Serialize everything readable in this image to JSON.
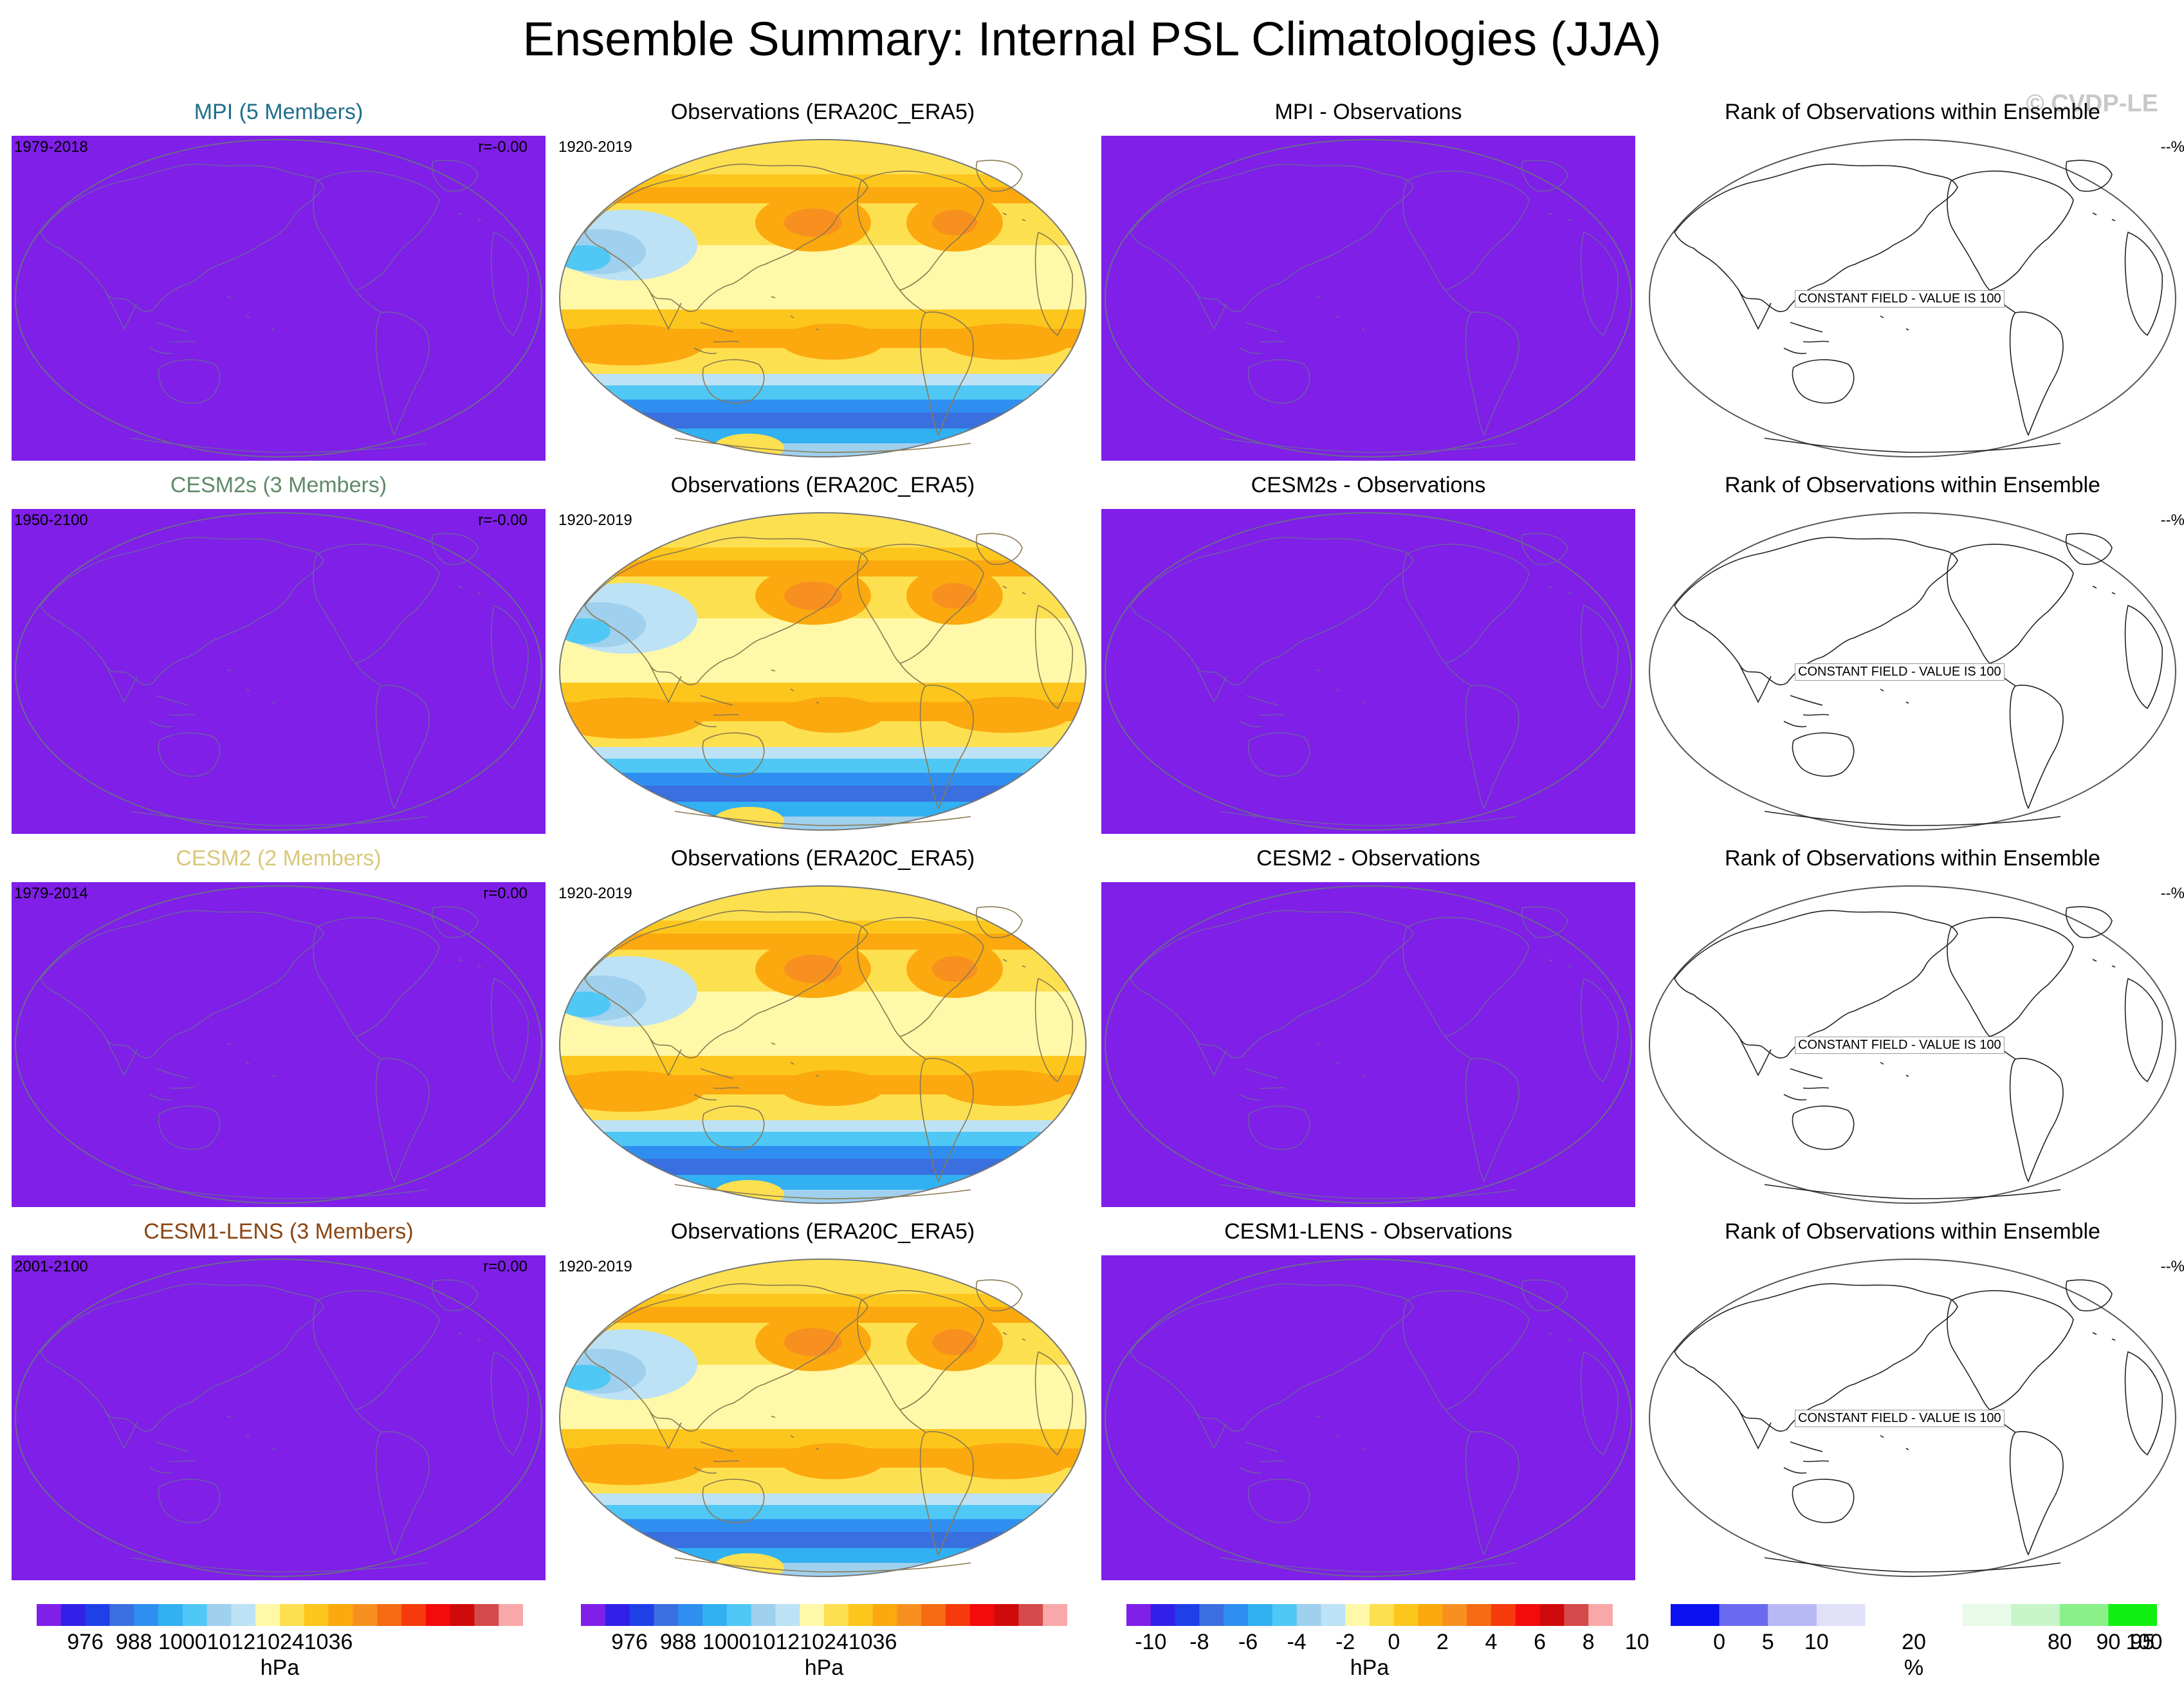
{
  "title": "Ensemble Summary: Internal PSL Climatologies (JJA)",
  "copyright": "© CVDP-LE",
  "rows": [
    {
      "model_title": "MPI (5 Members)",
      "model_color": "#1f6f8b",
      "model_years": "1979-2018",
      "model_r": "r=-0.00",
      "obs_title": "Observations (ERA20C_ERA5)",
      "obs_years": "1920-2019",
      "diff_title": "MPI - Observations",
      "rank_title": "Rank of Observations within Ensemble",
      "rank_pct": "--%",
      "rank_const": "CONSTANT FIELD - VALUE IS 100"
    },
    {
      "model_title": "CESM2s (3 Members)",
      "model_color": "#5f8a6a",
      "model_years": "1950-2100",
      "model_r": "r=-0.00",
      "obs_title": "Observations (ERA20C_ERA5)",
      "obs_years": "1920-2019",
      "diff_title": "CESM2s - Observations",
      "rank_title": "Rank of Observations within Ensemble",
      "rank_pct": "--%",
      "rank_const": "CONSTANT FIELD - VALUE IS 100"
    },
    {
      "model_title": "CESM2 (2 Members)",
      "model_color": "#d8c87a",
      "model_years": "1979-2014",
      "model_r": "r=0.00",
      "obs_title": "Observations (ERA20C_ERA5)",
      "obs_years": "1920-2019",
      "diff_title": "CESM2 - Observations",
      "rank_title": "Rank of Observations within Ensemble",
      "rank_pct": "--%",
      "rank_const": "CONSTANT FIELD - VALUE IS 100"
    },
    {
      "model_title": "CESM1-LENS (3 Members)",
      "model_color": "#8b4513",
      "model_years": "2001-2100",
      "model_r": "r=0.00",
      "obs_title": "Observations (ERA20C_ERA5)",
      "obs_years": "1920-2019",
      "diff_title": "CESM1-LENS - Observations",
      "rank_title": "Rank of Observations within Ensemble",
      "rank_pct": "--%",
      "rank_const": "CONSTANT FIELD - VALUE IS 100"
    }
  ],
  "colors": {
    "model_fill": "#7f1fe8",
    "psl_scale": [
      "#7f1fe8",
      "#3020e8",
      "#1f3fe8",
      "#3a6fe0",
      "#2f8ff0",
      "#31b0f2",
      "#4fc8f5",
      "#9fd0ee",
      "#bde2f5",
      "#fff8a8",
      "#fde04f",
      "#fdc61c",
      "#fba90f",
      "#f8901f",
      "#f56a13",
      "#f63a0c",
      "#f30a0a",
      "#cf0a0a",
      "#d44a4a",
      "#f8a8a8"
    ],
    "diff_scale": [
      "#7f1fe8",
      "#3020e8",
      "#1f3fe8",
      "#3a6fe0",
      "#2f8ff0",
      "#31b0f2",
      "#4fc8f5",
      "#9fd0ee",
      "#bde2f5",
      "#fff8a8",
      "#fde04f",
      "#fdc61c",
      "#fba90f",
      "#f8901f",
      "#f56a13",
      "#f63a0c",
      "#f30a0a",
      "#cf0a0a",
      "#d44a4a",
      "#f8a8a8"
    ],
    "rank_scale": [
      "#0a10f0",
      "#6a6af0",
      "#b8b8f5",
      "#e0e0f8",
      "#ffffff",
      "#ffffff",
      "#e8fae8",
      "#c8f5c8",
      "#8af08a",
      "#10f010"
    ]
  },
  "colorbars": {
    "psl": {
      "labels": [
        "976",
        "988",
        "1000",
        "1012",
        "1024",
        "1036"
      ],
      "unit": "hPa"
    },
    "obs": {
      "labels": [
        "976",
        "988",
        "1000",
        "1012",
        "1024",
        "1036"
      ],
      "unit": "hPa"
    },
    "diff": {
      "labels": [
        "-10",
        "-8",
        "-6",
        "-4",
        "-2",
        "0",
        "2",
        "4",
        "6",
        "8",
        "10"
      ],
      "unit": "hPa"
    },
    "rank": {
      "labels": [
        "0",
        "5",
        "10",
        "20",
        "80",
        "90",
        "95",
        "100"
      ],
      "unit": "%"
    }
  }
}
